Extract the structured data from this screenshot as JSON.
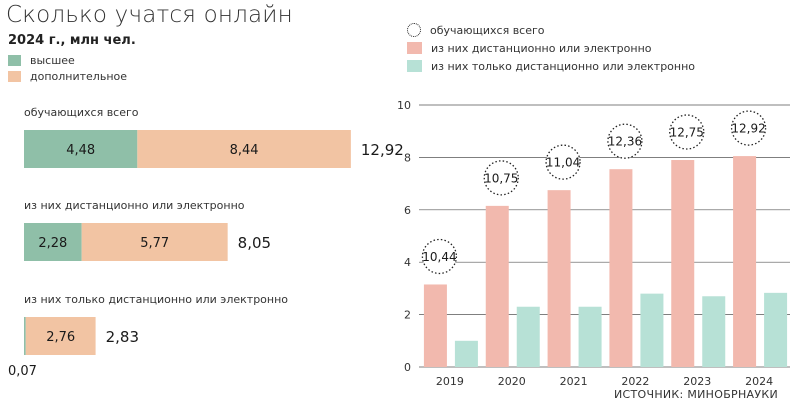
{
  "title": "Сколько учатся онлайн",
  "subtitle": "2024 г., млн чел.",
  "legend_left": [
    {
      "label": "высшее",
      "color": "#8fbfa8"
    },
    {
      "label": "дополнительное",
      "color": "#f2c4a3"
    }
  ],
  "legend_right": [
    {
      "label": "обучающихся всего"
    },
    {
      "label": "из них дистанционно или электронно",
      "color": "#f2b9ae"
    },
    {
      "label": "из них только дистанционно или электронно",
      "color": "#b7e1d6"
    }
  ],
  "source": "ИСТОЧНИК: МИНОБРНАУКИ",
  "chart_data": [
    {
      "type": "bar",
      "orientation": "horizontal",
      "stacked": true,
      "series_names": [
        "высшее",
        "дополнительное"
      ],
      "colors": [
        "#8fbfa8",
        "#f2c4a3"
      ],
      "groups": [
        {
          "label": "обучающихся всего",
          "values": [
            4.48,
            8.44
          ],
          "value_labels": [
            "4,48",
            "8,44"
          ],
          "total": "12,92"
        },
        {
          "label": "из них дистанционно или электронно",
          "values": [
            2.28,
            5.77
          ],
          "value_labels": [
            "2,28",
            "5,77"
          ],
          "total": "8,05"
        },
        {
          "label": "из них только дистанционно или электронно",
          "values": [
            0.07,
            2.76
          ],
          "value_labels": [
            "0,07",
            "2,76"
          ],
          "total": "2,83"
        }
      ]
    },
    {
      "type": "bar",
      "categories": [
        "2019",
        "2020",
        "2021",
        "2022",
        "2023",
        "2024"
      ],
      "ylim": [
        0,
        10
      ],
      "yticks": [
        "0",
        "2",
        "4",
        "6",
        "8",
        "10"
      ],
      "grid": true,
      "series": [
        {
          "name": "из них дистанционно или электронно",
          "color": "#f2b9ae",
          "values": [
            3.15,
            6.15,
            6.75,
            7.55,
            7.9,
            8.05
          ]
        },
        {
          "name": "из них только дистанционно или электронно",
          "color": "#b7e1d6",
          "values": [
            1.0,
            2.3,
            2.3,
            2.8,
            2.7,
            2.83
          ]
        }
      ],
      "totals": {
        "name": "обучающихся всего",
        "values": [
          10.44,
          10.75,
          11.04,
          12.36,
          12.75,
          12.92
        ],
        "labels": [
          "10,44",
          "10,75",
          "11,04",
          "12,36",
          "12,75",
          "12,92"
        ]
      }
    }
  ]
}
